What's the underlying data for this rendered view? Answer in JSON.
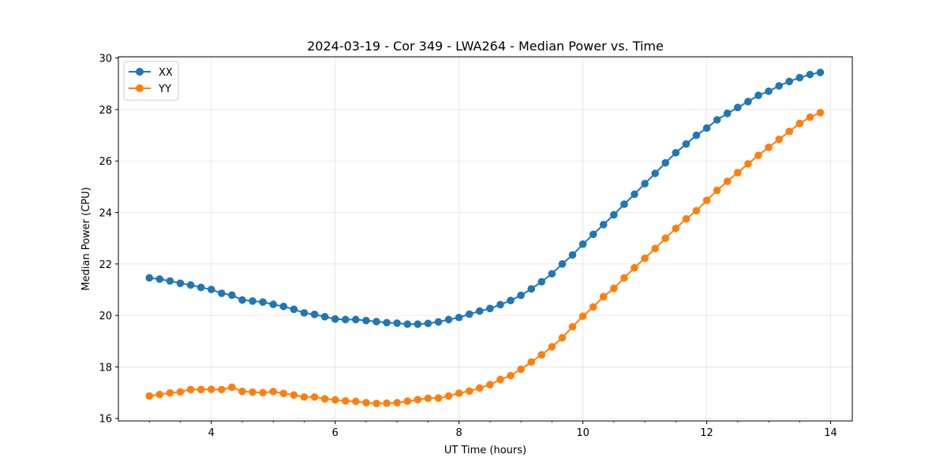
{
  "chart_data": {
    "type": "line",
    "title": "2024-03-19 - Cor 349 - LWA264 - Median Power vs. Time",
    "xlabel": "UT Time (hours)",
    "ylabel": "Median Power (CPU)",
    "xlim": [
      2.5,
      14.35
    ],
    "ylim": [
      15.9,
      30.05
    ],
    "xticks": [
      4,
      6,
      8,
      10,
      12,
      14
    ],
    "yticks": [
      16,
      18,
      20,
      22,
      24,
      26,
      28,
      30
    ],
    "grid": true,
    "legend_position": "top-left",
    "x": [
      3.0,
      3.167,
      3.333,
      3.5,
      3.667,
      3.833,
      4.0,
      4.167,
      4.333,
      4.5,
      4.667,
      4.833,
      5.0,
      5.167,
      5.333,
      5.5,
      5.667,
      5.833,
      6.0,
      6.167,
      6.333,
      6.5,
      6.667,
      6.833,
      7.0,
      7.167,
      7.333,
      7.5,
      7.667,
      7.833,
      8.0,
      8.167,
      8.333,
      8.5,
      8.667,
      8.833,
      9.0,
      9.167,
      9.333,
      9.5,
      9.667,
      9.833,
      10.0,
      10.167,
      10.333,
      10.5,
      10.667,
      10.833,
      11.0,
      11.167,
      11.333,
      11.5,
      11.667,
      11.833,
      12.0,
      12.167,
      12.333,
      12.5,
      12.667,
      12.833,
      13.0,
      13.167,
      13.333,
      13.5,
      13.667,
      13.833
    ],
    "series": [
      {
        "name": "XX",
        "color": "#1f77b4",
        "values": [
          21.46,
          21.41,
          21.34,
          21.25,
          21.18,
          21.09,
          21.01,
          20.86,
          20.79,
          20.6,
          20.56,
          20.52,
          20.43,
          20.35,
          20.24,
          20.1,
          20.04,
          19.95,
          19.86,
          19.84,
          19.84,
          19.8,
          19.76,
          19.72,
          19.7,
          19.66,
          19.66,
          19.69,
          19.75,
          19.84,
          19.92,
          20.05,
          20.17,
          20.27,
          20.42,
          20.58,
          20.78,
          21.03,
          21.31,
          21.62,
          22.0,
          22.35,
          22.77,
          23.15,
          23.53,
          23.91,
          24.32,
          24.71,
          25.12,
          25.52,
          25.93,
          26.32,
          26.66,
          27.0,
          27.28,
          27.6,
          27.85,
          28.08,
          28.31,
          28.55,
          28.71,
          28.92,
          29.09,
          29.24,
          29.36,
          29.44
        ]
      },
      {
        "name": "YY",
        "color": "#ff7f0e",
        "values": [
          16.87,
          16.93,
          16.99,
          17.03,
          17.12,
          17.12,
          17.13,
          17.12,
          17.21,
          17.05,
          17.02,
          17.0,
          17.04,
          16.97,
          16.91,
          16.83,
          16.83,
          16.76,
          16.72,
          16.68,
          16.66,
          16.61,
          16.58,
          16.59,
          16.61,
          16.67,
          16.73,
          16.78,
          16.79,
          16.87,
          16.98,
          17.06,
          17.18,
          17.31,
          17.51,
          17.66,
          17.91,
          18.19,
          18.47,
          18.78,
          19.13,
          19.56,
          19.97,
          20.33,
          20.73,
          21.05,
          21.46,
          21.85,
          22.22,
          22.6,
          23.0,
          23.38,
          23.75,
          24.07,
          24.47,
          24.86,
          25.21,
          25.55,
          25.89,
          26.22,
          26.53,
          26.84,
          27.15,
          27.46,
          27.7,
          27.88
        ]
      }
    ]
  }
}
